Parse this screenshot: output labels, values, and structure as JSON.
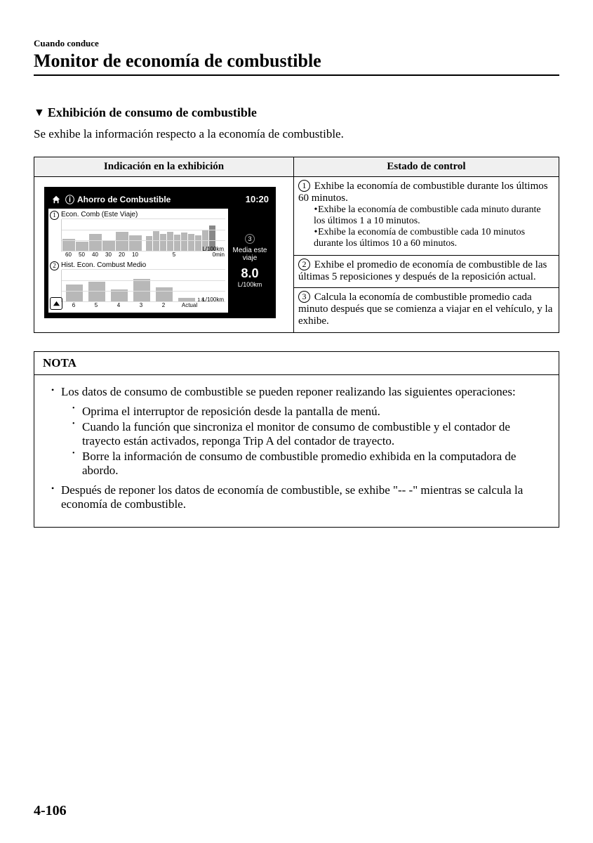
{
  "header": {
    "breadcrumb": "Cuando conduce",
    "title": "Monitor de economía de combustible"
  },
  "section": {
    "heading": "Exhibición de consumo de combustible",
    "intro": "Se exhibe la información respecto a la economía de combustible."
  },
  "table": {
    "col1": "Indicación en la exhibición",
    "col2": "Estado de control",
    "rows": [
      {
        "num": "1",
        "text": "Exhibe la economía de combustible durante los últimos 60 minutos.",
        "sub": [
          "Exhibe la economía de combustible cada minuto durante los últimos 1 a 10 minutos.",
          "Exhibe la economía de combustible cada 10 minutos durante los últimos 10 a 60 minutos."
        ]
      },
      {
        "num": "2",
        "text": "Exhibe el promedio de economía de combustible de las últimas 5 reposiciones y después de la reposición actual."
      },
      {
        "num": "3",
        "text": "Calcula la economía de combustible promedio cada minuto después que se comienza a viajar en el vehículo, y la exhibe."
      }
    ]
  },
  "device": {
    "title": "Ahorro de Combustible",
    "clock": "10:20",
    "chart1": {
      "num": "1",
      "label": "Econ. Comb (Este Viaje)",
      "ymax": "15",
      "yunit": "L/100km",
      "xlabels_left": [
        "60",
        "50",
        "40",
        "30",
        "20",
        "10"
      ],
      "xlabels_mid": "5",
      "xlabels_right": "0min",
      "bars_left_pct": [
        40,
        30,
        55,
        35,
        60,
        50
      ],
      "bars_right_pct": [
        48,
        62,
        55,
        60,
        52,
        58,
        55,
        50,
        65,
        80
      ]
    },
    "chart2": {
      "num": "2",
      "label": "Hist. Econ. Combust Medio",
      "ymax": "15",
      "yunit": "L/100km",
      "mid_label": "1.8",
      "xlabels": [
        "6",
        "5",
        "4",
        "3",
        "2",
        "Actual"
      ],
      "bars_pct": [
        55,
        62,
        40,
        72,
        45,
        12
      ]
    },
    "metric": {
      "num": "3",
      "label": "Media este viaje",
      "value": "8.0",
      "unit": "L/100km"
    }
  },
  "nota": {
    "title": "NOTA",
    "items": [
      {
        "text": "Los datos de consumo de combustible se pueden reponer realizando las siguientes operaciones:",
        "sub": [
          "Oprima el interruptor de reposición desde la pantalla de menú.",
          "Cuando la función que sincroniza el monitor de consumo de combustible y el contador de trayecto están activados, reponga Trip A del contador de trayecto.",
          "Borre la información de consumo de combustible promedio exhibida en la computadora de abordo."
        ]
      },
      {
        "text": "Después de reponer los datos de economía de combustible, se exhibe \"-- -\" mientras se calcula la economía de combustible."
      }
    ]
  },
  "footer": {
    "page": "4-106"
  },
  "colors": {
    "bar": "#b8b8b8",
    "grid": "#dddddd",
    "header_bg": "#f0f0f0"
  }
}
